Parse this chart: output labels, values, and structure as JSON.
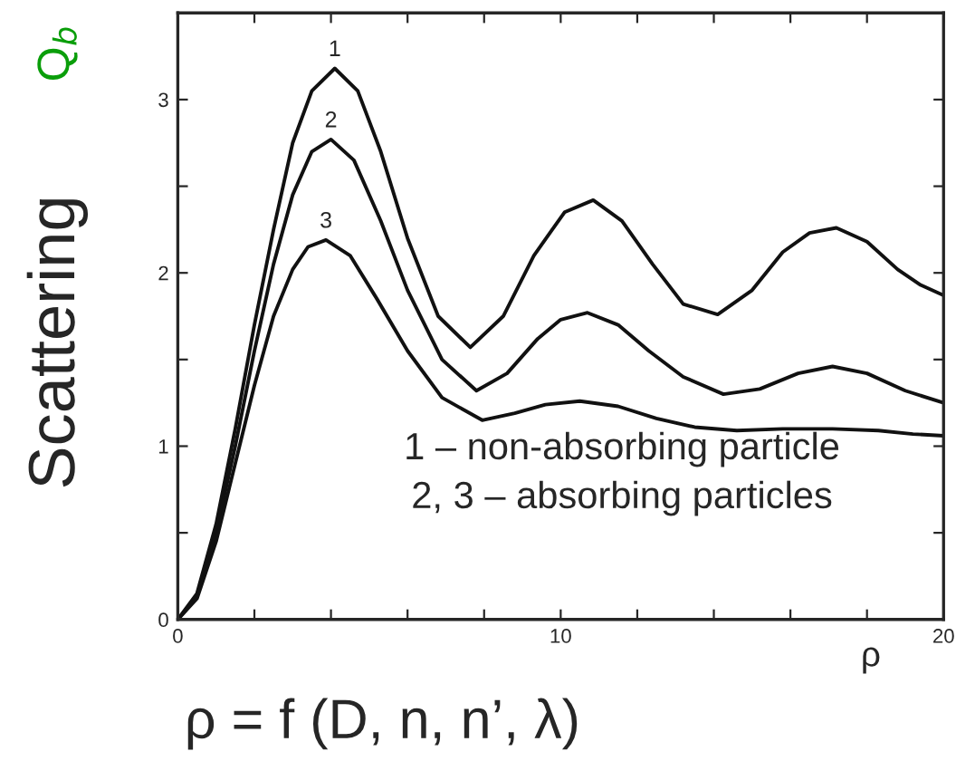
{
  "chart_data": {
    "type": "line",
    "xlabel": "ρ = f (D, n, n’, λ)",
    "ylabel": "Scattering",
    "y2label": "Q$_{b}$",
    "annotations": [
      "ρ",
      "1 – non-absorbing particle\n2, 3 – absorbing particles"
    ],
    "series": [
      {
        "name": "1",
        "color": "#111111",
        "x": [
          0,
          0.5,
          1,
          1.5,
          2,
          2.5,
          3,
          3.5,
          4.1,
          4.7,
          5.3,
          6,
          6.8,
          7.64,
          8.5,
          9.3,
          10.1,
          10.85,
          11.6,
          12.4,
          13.2,
          14.1,
          15,
          15.8,
          16.5,
          17.2,
          18,
          18.8,
          19.4,
          20
        ],
        "values": [
          0,
          0.15,
          0.55,
          1.1,
          1.7,
          2.25,
          2.75,
          3.05,
          3.18,
          3.05,
          2.7,
          2.2,
          1.75,
          1.57,
          1.75,
          2.1,
          2.35,
          2.42,
          2.3,
          2.05,
          1.82,
          1.76,
          1.9,
          2.12,
          2.23,
          2.26,
          2.18,
          2.02,
          1.93,
          1.87
        ]
      },
      {
        "name": "2",
        "color": "#111111",
        "x": [
          0,
          0.5,
          1,
          1.5,
          2,
          2.5,
          3,
          3.5,
          4.0,
          4.6,
          5.3,
          6,
          6.9,
          7.8,
          8.6,
          9.4,
          10,
          10.7,
          11.5,
          12.3,
          13.2,
          14.25,
          15.2,
          16.2,
          17.1,
          18,
          19,
          20
        ],
        "values": [
          0,
          0.13,
          0.5,
          1.0,
          1.55,
          2.05,
          2.45,
          2.7,
          2.77,
          2.65,
          2.3,
          1.9,
          1.5,
          1.32,
          1.42,
          1.62,
          1.73,
          1.77,
          1.7,
          1.55,
          1.4,
          1.3,
          1.33,
          1.42,
          1.46,
          1.42,
          1.32,
          1.25
        ]
      },
      {
        "name": "3",
        "color": "#111111",
        "x": [
          0,
          0.5,
          1,
          1.5,
          2,
          2.5,
          3,
          3.4,
          3.87,
          4.5,
          5.2,
          6,
          6.9,
          7.95,
          8.8,
          9.6,
          10.5,
          11.5,
          12.5,
          13.5,
          14.6,
          15.8,
          17.1,
          18.3,
          19.2,
          20
        ],
        "values": [
          0,
          0.12,
          0.45,
          0.9,
          1.35,
          1.75,
          2.02,
          2.15,
          2.19,
          2.1,
          1.85,
          1.55,
          1.28,
          1.15,
          1.19,
          1.24,
          1.26,
          1.23,
          1.16,
          1.11,
          1.09,
          1.1,
          1.1,
          1.09,
          1.07,
          1.06
        ]
      }
    ],
    "xlim": [
      0,
      20
    ],
    "xticks": [
      0,
      {
        "value": 2,
        "label": null
      },
      {
        "value": 4,
        "label": null
      },
      {
        "value": 6,
        "label": null
      },
      {
        "value": 8,
        "label": null
      },
      10,
      {
        "value": 12,
        "label": null
      },
      {
        "value": 14,
        "label": null
      },
      {
        "value": 16,
        "label": null
      },
      {
        "value": 18,
        "label": null
      },
      20
    ],
    "ylim": [
      0,
      3.5
    ],
    "yticks": [
      0,
      {
        "value": 0.5,
        "label": null
      },
      1,
      {
        "value": 1.5,
        "label": null
      },
      2,
      {
        "value": 2.5,
        "label": null
      },
      3
    ],
    "grid": false,
    "legend": false,
    "marker": "none",
    "line_style": "solid"
  }
}
